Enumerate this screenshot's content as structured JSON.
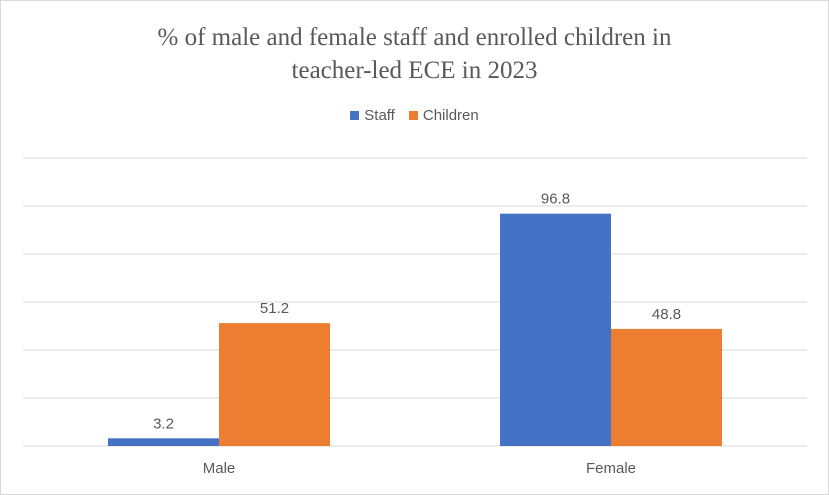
{
  "chart_data": {
    "type": "bar",
    "title_lines": [
      "% of male and female staff and enrolled children in",
      "teacher-led ECE in 2023"
    ],
    "categories": [
      "Male",
      "Female"
    ],
    "series": [
      {
        "name": "Staff",
        "values": [
          3.2,
          96.8
        ],
        "color": "#4472c4"
      },
      {
        "name": "Children",
        "values": [
          51.2,
          48.8
        ],
        "color": "#ed7d31"
      }
    ],
    "ylim": [
      0,
      120
    ],
    "grid": true,
    "legend_position": "top",
    "xlabel": "",
    "ylabel": ""
  }
}
